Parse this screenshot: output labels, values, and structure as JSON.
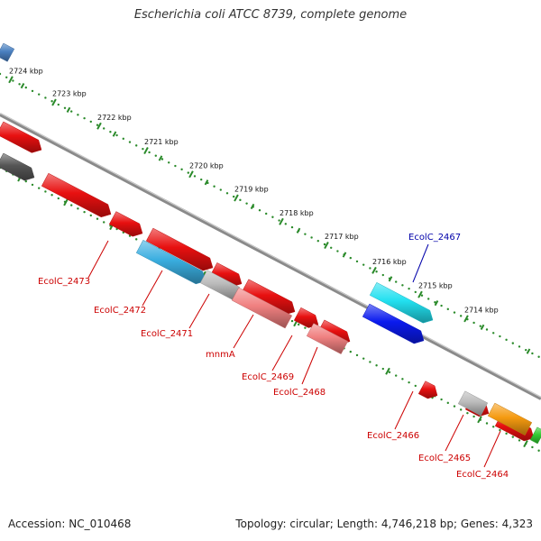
{
  "title": "Escherichia coli ATCC 8739, complete genome",
  "footer": {
    "accession": "Accession: NC_010468",
    "topology": "Topology: circular; Length: 4,746,218 bp; Genes: 4,323"
  },
  "scale_ticks": [
    {
      "label": "2724 kbp"
    },
    {
      "label": "2723 kbp"
    },
    {
      "label": "2722 kbp"
    },
    {
      "label": "2721 kbp"
    },
    {
      "label": "2720 kbp"
    },
    {
      "label": "2719 kbp"
    },
    {
      "label": "2718 kbp"
    },
    {
      "label": "2717 kbp"
    },
    {
      "label": "2716 kbp"
    },
    {
      "label": "2715 kbp"
    },
    {
      "label": "2714 kbp"
    }
  ],
  "gene_labels": [
    {
      "label": "EcolC_2473",
      "color": "#cc0000"
    },
    {
      "label": "EcolC_2472",
      "color": "#cc0000"
    },
    {
      "label": "EcolC_2471",
      "color": "#cc0000"
    },
    {
      "label": "mnmA",
      "color": "#cc0000"
    },
    {
      "label": "EcolC_2469",
      "color": "#cc0000"
    },
    {
      "label": "EcolC_2468",
      "color": "#cc0000"
    },
    {
      "label": "EcolC_2467",
      "color": "#0000aa"
    },
    {
      "label": "EcolC_2466",
      "color": "#cc0000"
    },
    {
      "label": "EcolC_2465",
      "color": "#cc0000"
    },
    {
      "label": "EcolC_2464",
      "color": "#cc0000"
    }
  ],
  "colors": {
    "backbone": "#8a8a8a",
    "scale_dots": "#2a8a2a",
    "red": "#e81010",
    "pink": "#f08080",
    "grey": "#bbbbbb",
    "dark_grey": "#555555",
    "sky_blue": "#3aaee0",
    "cyan": "#22e0f0",
    "blue": "#0a1aee",
    "orange": "#f59a10",
    "green": "#33cc33",
    "steel_blue": "#4a80c0"
  }
}
